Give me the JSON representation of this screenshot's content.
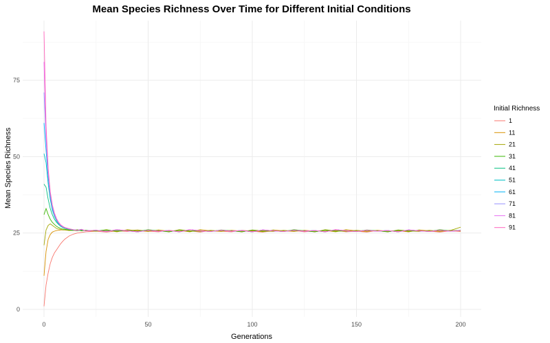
{
  "chart_data": {
    "type": "line",
    "title": "Mean Species Richness Over Time for Different Initial Conditions",
    "xlabel": "Generations",
    "ylabel": "Mean Species Richness",
    "xlim": [
      0,
      200
    ],
    "ylim": [
      0,
      92
    ],
    "x_ticks": [
      0,
      50,
      100,
      150,
      200
    ],
    "y_ticks": [
      0,
      25,
      50,
      75
    ],
    "grid": true,
    "legend": {
      "title": "Initial Richness",
      "position": "right"
    },
    "x": [
      0,
      1,
      2,
      3,
      4,
      5,
      6,
      7,
      8,
      9,
      10,
      12,
      14,
      16,
      18,
      20,
      25,
      30,
      35,
      40,
      45,
      50,
      55,
      60,
      65,
      70,
      75,
      80,
      85,
      90,
      95,
      100,
      105,
      110,
      115,
      120,
      125,
      130,
      135,
      140,
      145,
      150,
      155,
      160,
      165,
      170,
      175,
      180,
      185,
      190,
      195,
      200
    ],
    "series": [
      {
        "name": "1",
        "color": "#F8766D",
        "values": [
          1,
          8,
          12,
          15,
          17,
          18.5,
          19.5,
          20.5,
          21.5,
          22.3,
          23,
          24,
          24.6,
          25,
          25.2,
          25.4,
          25.6,
          25.3,
          25.7,
          25.5,
          25.8,
          25.6,
          25.4,
          25.9,
          25.5,
          25.7,
          25.3,
          25.8,
          25.6,
          25.4,
          25.9,
          25.6,
          25.3,
          25.7,
          25.5,
          25.8,
          25.4,
          25.7,
          25.5,
          25.9,
          25.4,
          25.6,
          25.3,
          25.8,
          25.5,
          25.7,
          25.4,
          25.9,
          25.6,
          25.3,
          25.7,
          25.5
        ]
      },
      {
        "name": "11",
        "color": "#D89000",
        "values": [
          11,
          19,
          23,
          24.5,
          25.3,
          25.6,
          25.8,
          25.9,
          26,
          26,
          26,
          25.8,
          25.9,
          25.7,
          26,
          25.8,
          25.6,
          25.9,
          25.4,
          26.1,
          25.7,
          25.5,
          26,
          25.6,
          25.8,
          25.4,
          26.1,
          25.7,
          25.5,
          25.9,
          25.6,
          25.8,
          25.4,
          26,
          25.7,
          25.5,
          25.9,
          25.6,
          25.8,
          25.4,
          26.1,
          25.7,
          25.5,
          25.9,
          25.6,
          25.8,
          25.4,
          26,
          25.7,
          25.5,
          25.9,
          25.6
        ]
      },
      {
        "name": "21",
        "color": "#A3A500",
        "values": [
          21,
          26,
          27.5,
          28,
          27.5,
          27,
          26.5,
          26.3,
          26.2,
          26,
          26,
          25.9,
          25.8,
          26,
          25.7,
          25.9,
          25.6,
          26.1,
          25.5,
          25.8,
          26,
          25.6,
          25.9,
          25.4,
          26.1,
          25.7,
          25.5,
          25.9,
          25.6,
          25.8,
          25.4,
          26,
          25.7,
          25.5,
          25.9,
          25.6,
          25.8,
          25.4,
          26.1,
          25.7,
          25.5,
          25.9,
          25.6,
          25.8,
          25.4,
          26,
          25.7,
          25.5,
          25.9,
          25.6,
          25.8,
          26.9
        ]
      },
      {
        "name": "31",
        "color": "#39B600",
        "values": [
          31,
          33,
          31,
          29.5,
          28.5,
          27.8,
          27.2,
          26.8,
          26.5,
          26.3,
          26.2,
          26,
          25.9,
          26.1,
          25.8,
          25.9,
          25.7,
          26,
          25.6,
          25.9,
          25.5,
          26.1,
          25.7,
          25.4,
          25.9,
          25.6,
          25.8,
          25.5,
          26,
          25.7,
          25.4,
          25.9,
          25.6,
          25.8,
          25.5,
          26.1,
          25.7,
          25.4,
          25.9,
          25.6,
          25.8,
          25.5,
          26,
          25.7,
          25.4,
          25.9,
          25.6,
          25.8,
          25.5,
          26.1,
          25.7,
          25.9
        ]
      },
      {
        "name": "41",
        "color": "#00BF7D",
        "values": [
          41,
          40,
          36,
          33,
          31,
          29.5,
          28.5,
          27.8,
          27.2,
          26.8,
          26.5,
          26.2,
          26,
          25.8,
          26,
          25.7,
          25.9,
          25.6,
          26,
          25.7,
          25.5,
          25.9,
          25.6,
          25.8,
          25.4,
          26.1,
          25.7,
          25.5,
          25.9,
          25.6,
          25.8,
          25.4,
          26,
          25.7,
          25.5,
          25.9,
          25.6,
          25.8,
          25.4,
          26.1,
          25.7,
          25.5,
          25.9,
          25.6,
          25.8,
          25.4,
          26,
          25.7,
          25.5,
          25.9,
          25.6,
          25.8
        ]
      },
      {
        "name": "51",
        "color": "#00BFC4",
        "values": [
          51,
          48,
          41,
          36,
          32.5,
          30.5,
          29,
          28,
          27.3,
          26.9,
          26.6,
          26.3,
          26,
          25.8,
          26.1,
          25.7,
          25.9,
          25.5,
          26,
          25.7,
          25.4,
          25.9,
          25.6,
          25.8,
          25.4,
          26.1,
          25.7,
          25.5,
          25.9,
          25.6,
          25.8,
          25.4,
          26,
          25.7,
          25.5,
          25.9,
          25.6,
          25.8,
          25.4,
          26.1,
          25.7,
          25.5,
          25.9,
          25.6,
          25.8,
          25.4,
          26,
          25.7,
          25.5,
          25.9,
          25.6,
          25.8
        ]
      },
      {
        "name": "61",
        "color": "#00B0F6",
        "values": [
          61,
          52,
          43,
          37,
          33,
          30.8,
          29.2,
          28.1,
          27.4,
          27,
          26.7,
          26.3,
          26.1,
          25.9,
          26.2,
          25.7,
          25.9,
          25.5,
          26.1,
          25.7,
          25.4,
          25.9,
          25.6,
          25.8,
          25.4,
          26.1,
          25.7,
          25.5,
          25.9,
          25.6,
          25.8,
          25.4,
          26,
          25.7,
          25.5,
          25.9,
          25.6,
          25.8,
          25.4,
          26.1,
          25.7,
          25.5,
          25.9,
          25.6,
          25.8,
          25.4,
          26,
          25.7,
          25.5,
          25.9,
          25.6,
          25.8
        ]
      },
      {
        "name": "71",
        "color": "#9590FF",
        "values": [
          71,
          56,
          44,
          37.5,
          33.5,
          31,
          29.4,
          28.3,
          27.5,
          27,
          26.7,
          26.3,
          26.1,
          25.9,
          26.2,
          25.7,
          25.9,
          25.5,
          26.1,
          25.7,
          25.4,
          25.9,
          25.6,
          25.8,
          25.4,
          26.1,
          25.7,
          25.5,
          25.9,
          25.6,
          25.8,
          25.4,
          26,
          25.7,
          25.5,
          25.9,
          25.6,
          25.8,
          25.4,
          26.1,
          25.7,
          25.5,
          25.9,
          25.6,
          25.8,
          25.4,
          26,
          25.7,
          25.5,
          25.9,
          25.6,
          25.8
        ]
      },
      {
        "name": "81",
        "color": "#E76BF3",
        "values": [
          81,
          58,
          45,
          38,
          34,
          31.3,
          29.6,
          28.4,
          27.6,
          27.1,
          26.8,
          26.4,
          26.1,
          25.9,
          26.2,
          25.7,
          25.9,
          25.5,
          26.1,
          25.7,
          25.4,
          25.9,
          25.6,
          25.8,
          25.4,
          26.1,
          25.7,
          25.5,
          25.9,
          25.6,
          25.8,
          25.4,
          26,
          25.7,
          25.5,
          25.9,
          25.6,
          25.8,
          25.4,
          26.1,
          25.7,
          25.5,
          25.9,
          25.6,
          25.8,
          25.4,
          26,
          25.7,
          25.5,
          25.9,
          25.6,
          25.8
        ]
      },
      {
        "name": "91",
        "color": "#FF62BC",
        "values": [
          91,
          60,
          46,
          38.5,
          34.2,
          31.5,
          29.7,
          28.5,
          27.7,
          27.2,
          26.8,
          26.4,
          26.1,
          25.9,
          26.2,
          25.7,
          25.9,
          25.5,
          26.1,
          25.7,
          25.4,
          25.9,
          25.6,
          25.8,
          25.4,
          26.1,
          25.7,
          25.5,
          25.9,
          25.6,
          25.8,
          25.4,
          26,
          25.7,
          25.5,
          25.9,
          25.6,
          25.8,
          25.4,
          26.1,
          25.7,
          25.5,
          25.9,
          25.6,
          25.8,
          25.4,
          26,
          25.7,
          25.5,
          25.9,
          25.6,
          25.8
        ]
      }
    ]
  }
}
